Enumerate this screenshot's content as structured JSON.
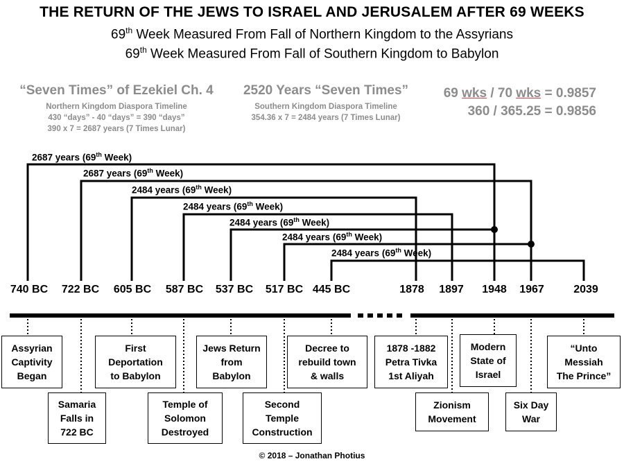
{
  "title": "THE RETURN OF THE JEWS TO ISRAEL AND JERUSALEM AFTER 69 WEEKS",
  "subtitle1": {
    "pre": "69",
    "sup": "th",
    "post": " Week Measured From Fall of Northern Kingdom to the Assyrians"
  },
  "subtitle2": {
    "pre": "69",
    "sup": "th",
    "post": " Week Measured From Fall of Southern Kingdom to Babylon"
  },
  "left_panel": {
    "heading": "“Seven Times” of Ezekiel Ch. 4",
    "line1": "Northern Kingdom Diaspora Timeline",
    "line2": "430 “days” - 40 “days” = 390 “days”",
    "line3": "390 x 7 = 2687  years (7 Times Lunar)"
  },
  "mid_panel": {
    "heading": "2520 Years “Seven Times”",
    "line1": "Southern Kingdom Diaspora Timeline",
    "line2": "354.36 x 7 = 2484  years (7 Times Lunar)"
  },
  "ratios": {
    "r1_a": "69 ",
    "r1_b": "wks",
    "r1_c": " / 70 ",
    "r1_d": "wks",
    "r1_e": " = 0.9857",
    "r2": "360 / 365.25 = 0.9856"
  },
  "spans": [
    {
      "pre": "2687 years (69",
      "sup": "th",
      "post": " Week)"
    },
    {
      "pre": "2687 years (69",
      "sup": "th",
      "post": " Week)"
    },
    {
      "pre": "2484 years (69",
      "sup": "th",
      "post": " Week)"
    },
    {
      "pre": "2484 years (69",
      "sup": "th",
      "post": " Week)"
    },
    {
      "pre": "2484 years (69",
      "sup": "th",
      "post": " Week)"
    },
    {
      "pre": "2484 years (69",
      "sup": "th",
      "post": " Week)"
    },
    {
      "pre": "2484 years (69",
      "sup": "th",
      "post": " Week)"
    }
  ],
  "years": [
    "740 BC",
    "722 BC",
    "605 BC",
    "587 BC",
    "537 BC",
    "517 BC",
    "445 BC",
    "1878",
    "1897",
    "1948",
    "1967",
    "2039"
  ],
  "events": [
    [
      "Assyrian",
      "Captivity",
      "Began"
    ],
    [
      "Samaria",
      "Falls in",
      "722 BC"
    ],
    [
      "First",
      "Deportation",
      "to Babylon"
    ],
    [
      "Temple of",
      "Solomon",
      "Destroyed"
    ],
    [
      "Jews Return",
      "from",
      "Babylon"
    ],
    [
      "Second",
      "Temple",
      "Construction"
    ],
    [
      "Decree to",
      "rebuild town",
      "& walls"
    ],
    [
      "1878 -1882",
      "Petra Tivka",
      "1st Aliyah"
    ],
    [
      "Zionism",
      "Movement"
    ],
    [
      "Modern",
      "State of",
      "Israel"
    ],
    [
      "Six Day",
      "War"
    ],
    [
      "“Unto",
      "Messiah",
      "The Prince”"
    ]
  ],
  "copyright": "© 2018 – Jonathan Photius"
}
